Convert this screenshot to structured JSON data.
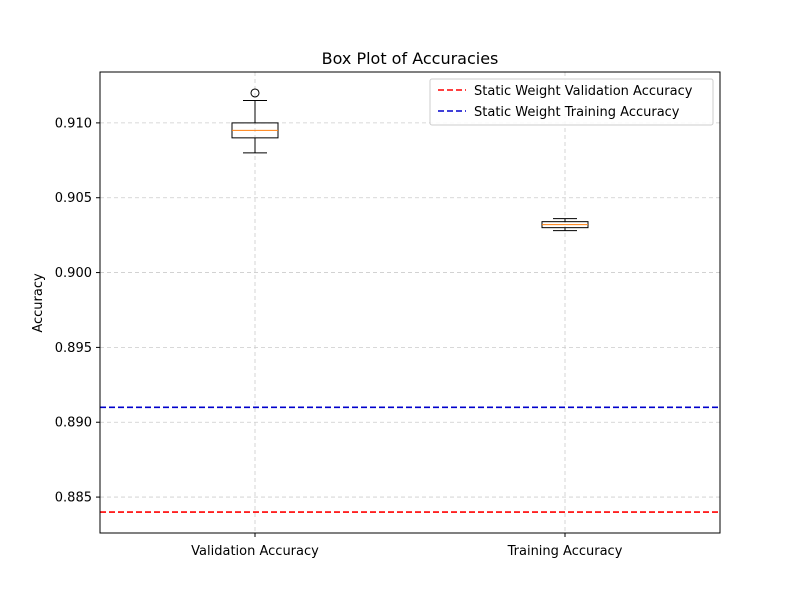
{
  "chart_data": {
    "type": "box",
    "title": "Box Plot of Accuracies",
    "xlabel": "",
    "ylabel": "Accuracy",
    "categories": [
      "Validation Accuracy",
      "Training Accuracy"
    ],
    "boxes": [
      {
        "category": "Validation Accuracy",
        "whisker_low": 0.908,
        "q1": 0.909,
        "median": 0.9095,
        "q3": 0.91,
        "whisker_high": 0.9115,
        "outliers": [
          0.912
        ]
      },
      {
        "category": "Training Accuracy",
        "whisker_low": 0.9028,
        "q1": 0.903,
        "median": 0.9032,
        "q3": 0.9034,
        "whisker_high": 0.9036,
        "outliers": []
      }
    ],
    "reference_lines": [
      {
        "name": "Static Weight Validation Accuracy",
        "value": 0.884,
        "color": "#ff0000",
        "style": "dashed"
      },
      {
        "name": "Static Weight Training Accuracy",
        "value": 0.891,
        "color": "#0000cc",
        "style": "dashed"
      }
    ],
    "ylim": [
      0.8826,
      0.9134
    ],
    "yticks": [
      "0.885",
      "0.890",
      "0.895",
      "0.900",
      "0.905",
      "0.910"
    ],
    "grid": true,
    "legend_position": "top-right",
    "colors": {
      "box": "#000000",
      "median": "#ff7f0e",
      "grid": "#cccccc"
    }
  }
}
